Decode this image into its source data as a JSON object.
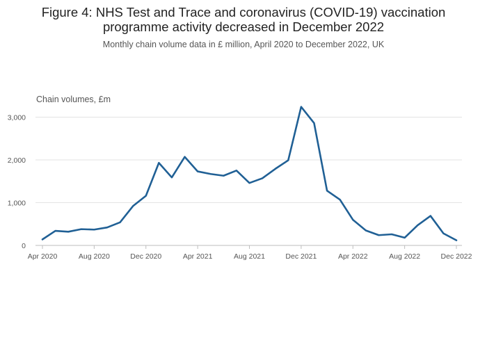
{
  "title_line1": "Figure 4: NHS Test and Trace and coronavirus (COVID-19) vaccination",
  "title_line2": "programme activity decreased in December 2022",
  "subtitle": "Monthly chain volume data in £ million, April 2020 to December 2022, UK",
  "colors": {
    "line": "#206095",
    "grid": "#e3e3e3",
    "axis": "#bebebe",
    "text": "#555555"
  },
  "chart_data": {
    "type": "line",
    "ylabel": "Chain volumes, £m",
    "ylim": [
      0,
      3300
    ],
    "yticks": [
      0,
      1000,
      2000,
      3000
    ],
    "ytick_labels": [
      "0",
      "1,000",
      "2,000",
      "3,000"
    ],
    "xtick_labels": [
      "Apr 2020",
      "Aug 2020",
      "Dec 2020",
      "Apr 2021",
      "Aug 2021",
      "Dec 2021",
      "Apr 2022",
      "Aug 2022",
      "Dec 2022"
    ],
    "grid": true,
    "x": [
      "Apr 2020",
      "May 2020",
      "Jun 2020",
      "Jul 2020",
      "Aug 2020",
      "Sep 2020",
      "Oct 2020",
      "Nov 2020",
      "Dec 2020",
      "Jan 2021",
      "Feb 2021",
      "Mar 2021",
      "Apr 2021",
      "May 2021",
      "Jun 2021",
      "Jul 2021",
      "Aug 2021",
      "Sep 2021",
      "Oct 2021",
      "Nov 2021",
      "Dec 2021",
      "Jan 2022",
      "Feb 2022",
      "Mar 2022",
      "Apr 2022",
      "May 2022",
      "Jun 2022",
      "Jul 2022",
      "Aug 2022",
      "Sep 2022",
      "Oct 2022",
      "Nov 2022",
      "Dec 2022"
    ],
    "series": [
      {
        "values": [
          140,
          340,
          320,
          380,
          370,
          420,
          540,
          920,
          1160,
          1930,
          1590,
          2070,
          1730,
          1670,
          1630,
          1750,
          1460,
          1570,
          1790,
          1990,
          3240,
          2860,
          1280,
          1070,
          600,
          350,
          240,
          260,
          180,
          470,
          690,
          280,
          120
        ]
      }
    ]
  }
}
